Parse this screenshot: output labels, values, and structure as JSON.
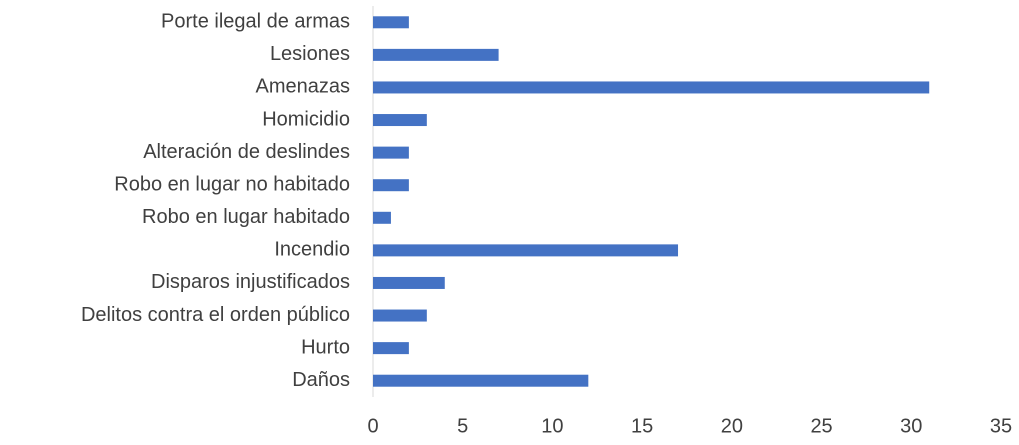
{
  "chart_data": {
    "type": "hbar",
    "categories": [
      "Porte ilegal de armas",
      "Lesiones",
      "Amenazas",
      "Homicidio",
      "Alteración de deslindes",
      "Robo en lugar no habitado",
      "Robo en lugar habitado",
      "Incendio",
      "Disparos injustificados",
      "Delitos contra el orden público",
      "Hurto",
      "Daños"
    ],
    "values": [
      2,
      7,
      31,
      3,
      2,
      2,
      1,
      17,
      4,
      3,
      2,
      12
    ],
    "color": "#4472c4",
    "xlim": [
      0,
      35
    ],
    "xticks": [
      0,
      5,
      10,
      15,
      20,
      25,
      30,
      35
    ],
    "grid": false
  }
}
